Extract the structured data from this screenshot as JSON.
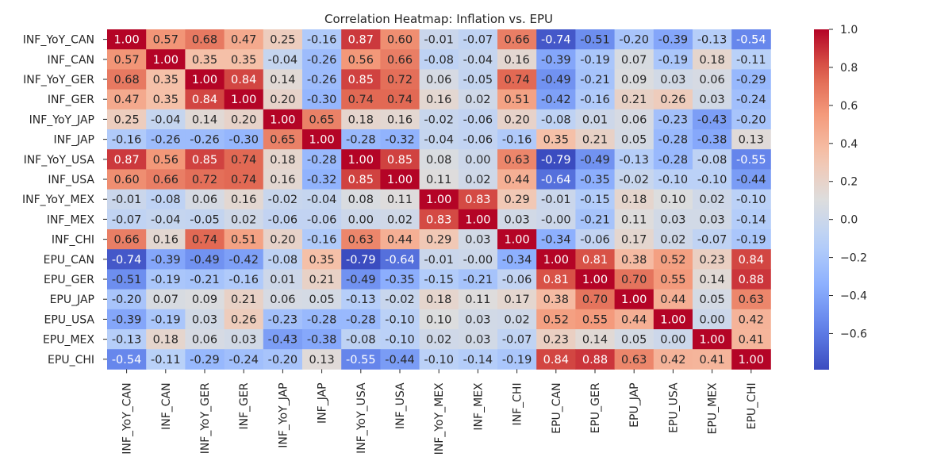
{
  "chart_data": {
    "type": "heatmap",
    "title": "Correlation Heatmap: Inflation vs. EPU",
    "labels": [
      "INF_YoY_CAN",
      "INF_CAN",
      "INF_YoY_GER",
      "INF_GER",
      "INF_YoY_JAP",
      "INF_JAP",
      "INF_YoY_USA",
      "INF_USA",
      "INF_YoY_MEX",
      "INF_MEX",
      "INF_CHI",
      "EPU_CAN",
      "EPU_GER",
      "EPU_JAP",
      "EPU_USA",
      "EPU_MEX",
      "EPU_CHI"
    ],
    "cell_text": [
      [
        "1.00",
        "0.57",
        "0.68",
        "0.47",
        "0.25",
        "-0.16",
        "0.87",
        "0.60",
        "-0.01",
        "-0.07",
        "0.66",
        "-0.74",
        "-0.51",
        "-0.20",
        "-0.39",
        "-0.13",
        "-0.54"
      ],
      [
        "0.57",
        "1.00",
        "0.35",
        "0.35",
        "-0.04",
        "-0.26",
        "0.56",
        "0.66",
        "-0.08",
        "-0.04",
        "0.16",
        "-0.39",
        "-0.19",
        "0.07",
        "-0.19",
        "0.18",
        "-0.11"
      ],
      [
        "0.68",
        "0.35",
        "1.00",
        "0.84",
        "0.14",
        "-0.26",
        "0.85",
        "0.72",
        "0.06",
        "-0.05",
        "0.74",
        "-0.49",
        "-0.21",
        "0.09",
        "0.03",
        "0.06",
        "-0.29"
      ],
      [
        "0.47",
        "0.35",
        "0.84",
        "1.00",
        "0.20",
        "-0.30",
        "0.74",
        "0.74",
        "0.16",
        "0.02",
        "0.51",
        "-0.42",
        "-0.16",
        "0.21",
        "0.26",
        "0.03",
        "-0.24"
      ],
      [
        "0.25",
        "-0.04",
        "0.14",
        "0.20",
        "1.00",
        "0.65",
        "0.18",
        "0.16",
        "-0.02",
        "-0.06",
        "0.20",
        "-0.08",
        "0.01",
        "0.06",
        "-0.23",
        "-0.43",
        "-0.20"
      ],
      [
        "-0.16",
        "-0.26",
        "-0.26",
        "-0.30",
        "0.65",
        "1.00",
        "-0.28",
        "-0.32",
        "-0.04",
        "-0.06",
        "-0.16",
        "0.35",
        "0.21",
        "0.05",
        "-0.28",
        "-0.38",
        "0.13"
      ],
      [
        "0.87",
        "0.56",
        "0.85",
        "0.74",
        "0.18",
        "-0.28",
        "1.00",
        "0.85",
        "0.08",
        "0.00",
        "0.63",
        "-0.79",
        "-0.49",
        "-0.13",
        "-0.28",
        "-0.08",
        "-0.55"
      ],
      [
        "0.60",
        "0.66",
        "0.72",
        "0.74",
        "0.16",
        "-0.32",
        "0.85",
        "1.00",
        "0.11",
        "0.02",
        "0.44",
        "-0.64",
        "-0.35",
        "-0.02",
        "-0.10",
        "-0.10",
        "-0.44"
      ],
      [
        "-0.01",
        "-0.08",
        "0.06",
        "0.16",
        "-0.02",
        "-0.04",
        "0.08",
        "0.11",
        "1.00",
        "0.83",
        "0.29",
        "-0.01",
        "-0.15",
        "0.18",
        "0.10",
        "0.02",
        "-0.10"
      ],
      [
        "-0.07",
        "-0.04",
        "-0.05",
        "0.02",
        "-0.06",
        "-0.06",
        "0.00",
        "0.02",
        "0.83",
        "1.00",
        "0.03",
        "-0.00",
        "-0.21",
        "0.11",
        "0.03",
        "0.03",
        "-0.14"
      ],
      [
        "0.66",
        "0.16",
        "0.74",
        "0.51",
        "0.20",
        "-0.16",
        "0.63",
        "0.44",
        "0.29",
        "0.03",
        "1.00",
        "-0.34",
        "-0.06",
        "0.17",
        "0.02",
        "-0.07",
        "-0.19"
      ],
      [
        "-0.74",
        "-0.39",
        "-0.49",
        "-0.42",
        "-0.08",
        "0.35",
        "-0.79",
        "-0.64",
        "-0.01",
        "-0.00",
        "-0.34",
        "1.00",
        "0.81",
        "0.38",
        "0.52",
        "0.23",
        "0.84"
      ],
      [
        "-0.51",
        "-0.19",
        "-0.21",
        "-0.16",
        "0.01",
        "0.21",
        "-0.49",
        "-0.35",
        "-0.15",
        "-0.21",
        "-0.06",
        "0.81",
        "1.00",
        "0.70",
        "0.55",
        "0.14",
        "0.88"
      ],
      [
        "-0.20",
        "0.07",
        "0.09",
        "0.21",
        "0.06",
        "0.05",
        "-0.13",
        "-0.02",
        "0.18",
        "0.11",
        "0.17",
        "0.38",
        "0.70",
        "1.00",
        "0.44",
        "0.05",
        "0.63"
      ],
      [
        "-0.39",
        "-0.19",
        "0.03",
        "0.26",
        "-0.23",
        "-0.28",
        "-0.28",
        "-0.10",
        "0.10",
        "0.03",
        "0.02",
        "0.52",
        "0.55",
        "0.44",
        "1.00",
        "0.00",
        "0.42"
      ],
      [
        "-0.13",
        "0.18",
        "0.06",
        "0.03",
        "-0.43",
        "-0.38",
        "-0.08",
        "-0.10",
        "0.02",
        "0.03",
        "-0.07",
        "0.23",
        "0.14",
        "0.05",
        "0.00",
        "1.00",
        "0.41"
      ],
      [
        "-0.54",
        "-0.11",
        "-0.29",
        "-0.24",
        "-0.20",
        "0.13",
        "-0.55",
        "-0.44",
        "-0.10",
        "-0.14",
        "-0.19",
        "0.84",
        "0.88",
        "0.63",
        "0.42",
        "0.41",
        "1.00"
      ]
    ],
    "colorbar": {
      "vmin": -0.79,
      "vmax": 1.0,
      "ticks": [
        "1.0",
        "0.8",
        "0.6",
        "0.4",
        "0.2",
        "0.0",
        "−0.2",
        "−0.4",
        "−0.6"
      ],
      "tick_values": [
        1.0,
        0.8,
        0.6,
        0.4,
        0.2,
        0.0,
        -0.2,
        -0.4,
        -0.6
      ]
    },
    "colormap": "coolwarm",
    "colors": {
      "low": "#3b4cc0",
      "mid": "#dddcdc",
      "high": "#b40426"
    }
  }
}
